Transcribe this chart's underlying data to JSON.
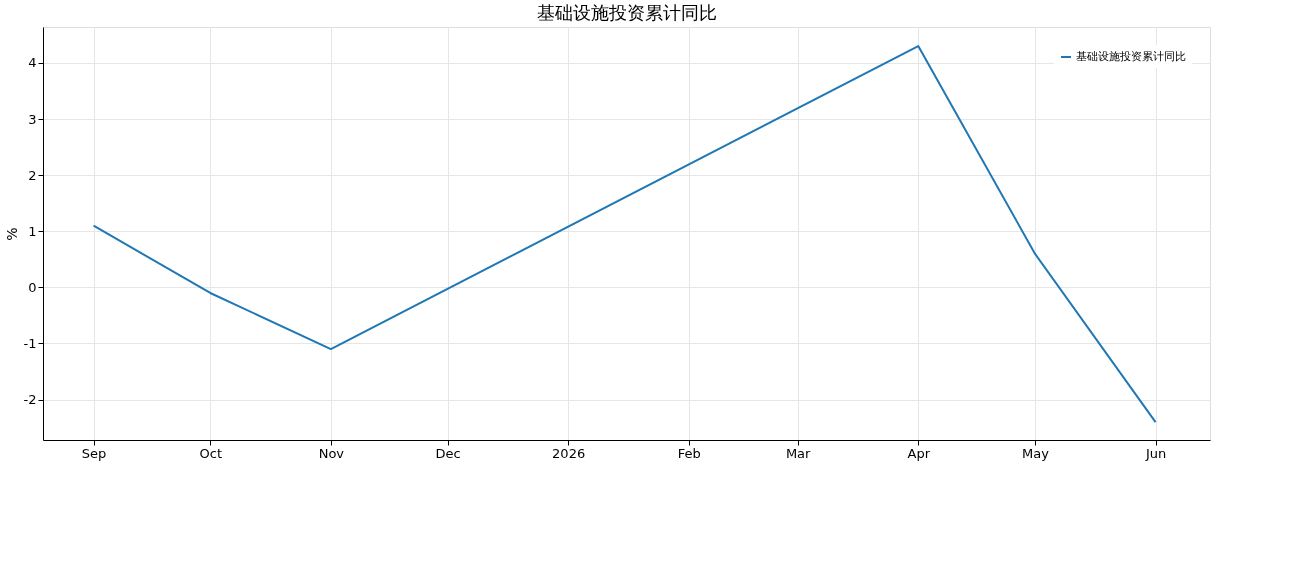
{
  "chart_data": {
    "type": "line",
    "title": "基础设施投资累计同比",
    "ylabel": "%",
    "x": [
      "2025-09-01",
      "2025-10-01",
      "2025-11-01",
      "2026-04-01",
      "2026-05-01",
      "2026-06-01"
    ],
    "series": [
      {
        "name": "基础设施投资累计同比",
        "color": "#1f77b4",
        "values": [
          1.1,
          -0.1,
          -1.1,
          4.3,
          0.6,
          -2.4
        ]
      }
    ],
    "xlim": [
      "2025-08-19",
      "2026-06-15"
    ],
    "xticks": [
      {
        "value": "2025-09-01",
        "label": "Sep"
      },
      {
        "value": "2025-10-01",
        "label": "Oct"
      },
      {
        "value": "2025-11-01",
        "label": "Nov"
      },
      {
        "value": "2025-12-01",
        "label": "Dec"
      },
      {
        "value": "2026-01-01",
        "label": "2026"
      },
      {
        "value": "2026-02-01",
        "label": "Feb"
      },
      {
        "value": "2026-03-01",
        "label": "Mar"
      },
      {
        "value": "2026-04-01",
        "label": "Apr"
      },
      {
        "value": "2026-05-01",
        "label": "May"
      },
      {
        "value": "2026-06-01",
        "label": "Jun"
      }
    ],
    "ylim": [
      -2.72,
      4.64
    ],
    "yticks": [
      -2,
      -1,
      0,
      1,
      2,
      3,
      4
    ],
    "grid": true,
    "legend": "top right",
    "line_style": "solid",
    "marker": "none"
  }
}
